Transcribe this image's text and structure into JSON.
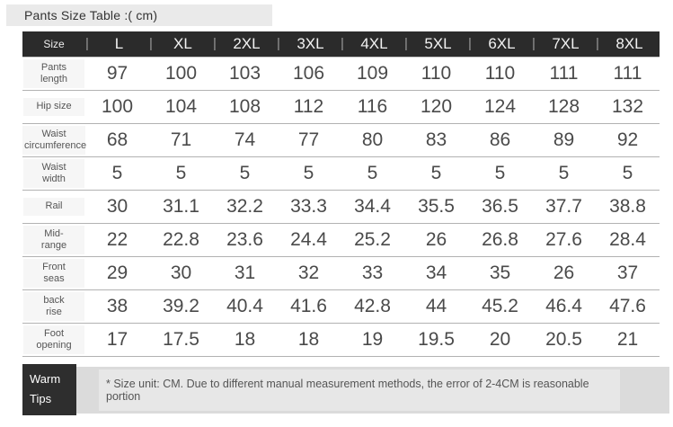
{
  "page": {
    "title": "Pants Size Table :( cm)"
  },
  "table": {
    "corner_label": "Size",
    "separator_glyph": "|",
    "columns": [
      "L",
      "XL",
      "2XL",
      "3XL",
      "4XL",
      "5XL",
      "6XL",
      "7XL",
      "8XL"
    ],
    "rows": [
      {
        "label": "Pants\nlength",
        "values": [
          97,
          100,
          103,
          106,
          109,
          110,
          110,
          111,
          111
        ]
      },
      {
        "label": "Hip size",
        "values": [
          100,
          104,
          108,
          112,
          116,
          120,
          124,
          128,
          132
        ]
      },
      {
        "label": "Waist\ncircumference",
        "values": [
          68,
          71,
          74,
          77,
          80,
          83,
          86,
          89,
          92
        ]
      },
      {
        "label": "Waist\nwidth",
        "values": [
          5,
          5,
          5,
          5,
          5,
          5,
          5,
          5,
          5
        ]
      },
      {
        "label": "Rail",
        "values": [
          30,
          31.1,
          32.2,
          33.3,
          34.4,
          35.5,
          36.5,
          37.7,
          38.8
        ]
      },
      {
        "label": "Mid-\nrange",
        "values": [
          22,
          22.8,
          23.6,
          24.4,
          25.2,
          26,
          26.8,
          27.6,
          28.4
        ]
      },
      {
        "label": "Front\nseas",
        "values": [
          29,
          30,
          31,
          32,
          33,
          34,
          35,
          26,
          37
        ]
      },
      {
        "label": "back\nrise",
        "values": [
          38,
          39.2,
          40.4,
          41.6,
          42.8,
          44,
          45.2,
          46.4,
          47.6
        ]
      },
      {
        "label": "Foot\nopening",
        "values": [
          17,
          17.5,
          18,
          18,
          19,
          19.5,
          20,
          20.5,
          21
        ]
      }
    ]
  },
  "footer": {
    "tips_label_line1": "Warm",
    "tips_label_line2": "Tips",
    "note": "* Size unit: CM. Due to different manual measurement methods, the error of 2-4CM is reasonable portion"
  },
  "colors": {
    "header_bg": "#2b2b2b",
    "header_text": "#f2f2f2",
    "separator": "#9a9a9a",
    "title_bar_bg": "#eaeaea",
    "row_label_bg": "#f6f6f6",
    "row_divider": "#b2b2b2",
    "cell_text": "#4a4a4a",
    "tips_bg": "#2e2e2e",
    "note_bar_bg": "#dbdbdb",
    "note_inner_bg": "#e7e7e7"
  },
  "chart_data": {
    "type": "table",
    "title": "Pants Size Table :( cm)",
    "columns": [
      "Size",
      "L",
      "XL",
      "2XL",
      "3XL",
      "4XL",
      "5XL",
      "6XL",
      "7XL",
      "8XL"
    ],
    "rows": [
      [
        "Pants length",
        97,
        100,
        103,
        106,
        109,
        110,
        110,
        111,
        111
      ],
      [
        "Hip size",
        100,
        104,
        108,
        112,
        116,
        120,
        124,
        128,
        132
      ],
      [
        "Waist circumference",
        68,
        71,
        74,
        77,
        80,
        83,
        86,
        89,
        92
      ],
      [
        "Waist width",
        5,
        5,
        5,
        5,
        5,
        5,
        5,
        5,
        5
      ],
      [
        "Rail",
        30,
        31.1,
        32.2,
        33.3,
        34.4,
        35.5,
        36.5,
        37.7,
        38.8
      ],
      [
        "Mid-range",
        22,
        22.8,
        23.6,
        24.4,
        25.2,
        26,
        26.8,
        27.6,
        28.4
      ],
      [
        "Front seas",
        29,
        30,
        31,
        32,
        33,
        34,
        35,
        26,
        37
      ],
      [
        "back rise",
        38,
        39.2,
        40.4,
        41.6,
        42.8,
        44,
        45.2,
        46.4,
        47.6
      ],
      [
        "Foot opening",
        17,
        17.5,
        18,
        18,
        19,
        19.5,
        20,
        20.5,
        21
      ]
    ],
    "footnote": "* Size unit: CM. Due to different manual measurement methods, the error of 2-4CM is reasonable portion"
  }
}
